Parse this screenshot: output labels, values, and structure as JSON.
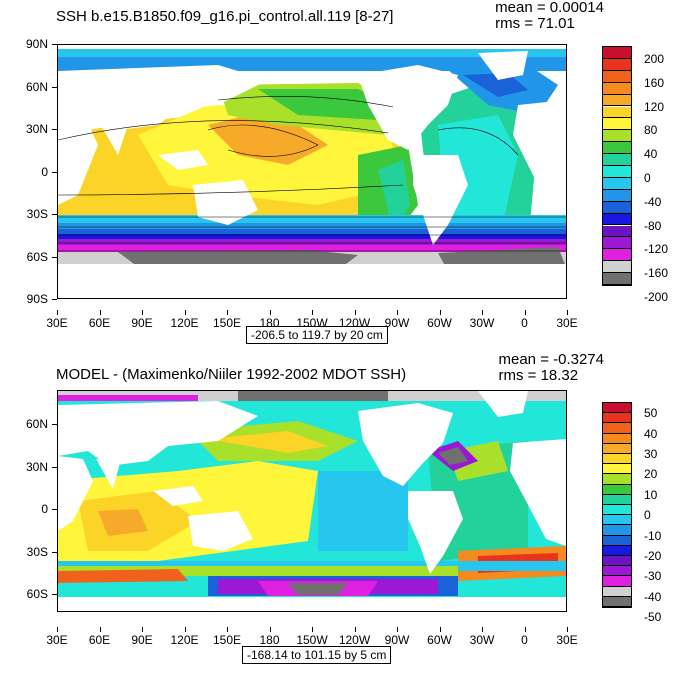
{
  "panels": [
    {
      "title": "SSH b.e15.B1850.f09_g16.pi_control.all.119 [8-27]",
      "mean": "mean = 0.00014",
      "rms": "rms = 71.01",
      "range": "-206.5 to 119.7 by 20 cm",
      "lat_labels": [
        "90N",
        "60N",
        "30N",
        "0",
        "30S",
        "60S",
        "90S"
      ],
      "lon_labels": [
        "30E",
        "60E",
        "90E",
        "120E",
        "150E",
        "180",
        "150W",
        "120W",
        "90W",
        "60W",
        "30W",
        "0",
        "30E"
      ],
      "colorbar_labels": [
        "200",
        "160",
        "120",
        "80",
        "40",
        "0",
        "-40",
        "-80",
        "-120",
        "-160",
        "-200"
      ],
      "colorbar_colors": [
        "#c8102e",
        "#e8341c",
        "#f0611c",
        "#f58a1f",
        "#f7aa2a",
        "#fbd427",
        "#fff53a",
        "#a8e02a",
        "#3cc83c",
        "#23d29a",
        "#22e6d8",
        "#27c6ee",
        "#2196e8",
        "#1a62d8",
        "#1818e0",
        "#6a14c4",
        "#9b18d4",
        "#e020e0",
        "#d0d0d0",
        "#707070"
      ]
    },
    {
      "title": "MODEL - (Maximenko/Niiler 1992-2002 MDOT SSH)",
      "mean": "mean = -0.3274",
      "rms": "rms = 18.32",
      "range": "-168.14 to 101.15 by 5 cm",
      "lat_labels": [
        "60N",
        "30N",
        "0",
        "30S",
        "60S"
      ],
      "lon_labels": [
        "30E",
        "60E",
        "90E",
        "120E",
        "150E",
        "180",
        "150W",
        "120W",
        "90W",
        "60W",
        "30W",
        "0",
        "30E"
      ],
      "colorbar_labels": [
        "50",
        "40",
        "30",
        "20",
        "10",
        "0",
        "-10",
        "-20",
        "-30",
        "-40",
        "-50"
      ],
      "colorbar_colors": [
        "#c8102e",
        "#e8341c",
        "#f0611c",
        "#f58a1f",
        "#f7aa2a",
        "#fbd427",
        "#fff53a",
        "#a8e02a",
        "#3cc83c",
        "#23d29a",
        "#22e6d8",
        "#27c6ee",
        "#2196e8",
        "#1a62d8",
        "#1818e0",
        "#6a14c4",
        "#9b18d4",
        "#e020e0",
        "#d0d0d0",
        "#707070"
      ]
    }
  ]
}
